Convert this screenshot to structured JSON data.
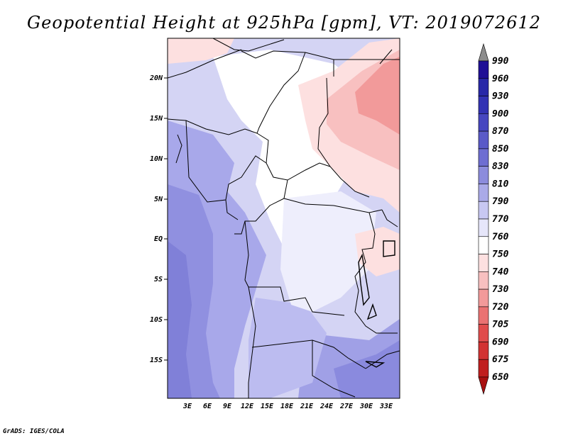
{
  "title": "Geopotential Height at 925hPa [gpm], VT: 2019072612",
  "credit": "GrADS: IGES/COLA",
  "map": {
    "lat_labels": [
      "20N",
      "15N",
      "10N",
      "5N",
      "EQ",
      "5S",
      "10S",
      "15S"
    ],
    "lon_labels": [
      "3E",
      "6E",
      "9E",
      "12E",
      "15E",
      "18E",
      "21E",
      "24E",
      "27E",
      "30E",
      "33E"
    ]
  },
  "colorbar": {
    "labels": [
      "990",
      "960",
      "930",
      "900",
      "870",
      "850",
      "830",
      "810",
      "790",
      "770",
      "760",
      "750",
      "740",
      "730",
      "720",
      "705",
      "690",
      "675",
      "650"
    ],
    "colors": [
      "#8c8c8c",
      "#1f0f96",
      "#2828a8",
      "#3232b4",
      "#4646c0",
      "#5a5ac8",
      "#6e6ed2",
      "#8c8cdc",
      "#aaaae8",
      "#c8c8f2",
      "#e6e6fa",
      "#ffffff",
      "#fde0e0",
      "#f8c0c0",
      "#f29a9a",
      "#ea7272",
      "#e04c4c",
      "#d23232",
      "#c01e1e",
      "#a81010"
    ]
  }
}
